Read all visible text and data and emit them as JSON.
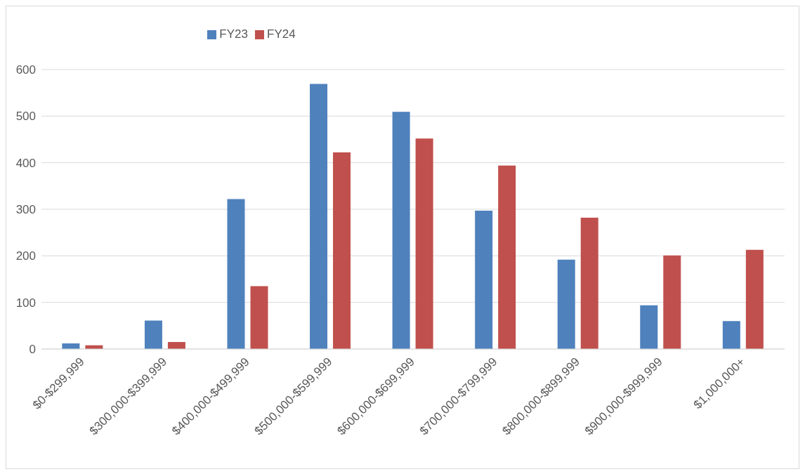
{
  "chart_data": {
    "type": "bar",
    "categories": [
      "$0-$299,999",
      "$300,000-$399,999",
      "$400,000-$499,999",
      "$500,000-$599,999",
      "$600,000-$699,999",
      "$700,000-$799,999",
      "$800,000-$899,999",
      "$900,000-$999,999",
      "$1,000,000+"
    ],
    "series": [
      {
        "name": "FY23",
        "color": "#4f81bd",
        "values": [
          12,
          61,
          322,
          569,
          509,
          297,
          192,
          94,
          60
        ]
      },
      {
        "name": "FY24",
        "color": "#c0504d",
        "values": [
          8,
          15,
          135,
          422,
          452,
          394,
          282,
          201,
          213
        ]
      }
    ],
    "ylim": [
      0,
      600
    ],
    "yticks": [
      0,
      100,
      200,
      300,
      400,
      500,
      600
    ],
    "grid": "y",
    "legend": "top"
  }
}
